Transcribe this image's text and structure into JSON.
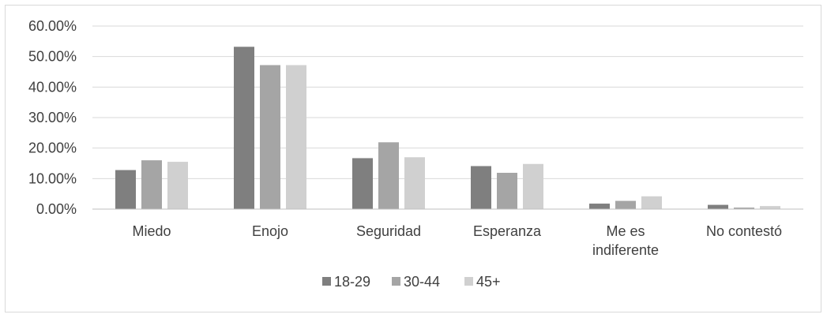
{
  "chart_data": {
    "type": "bar",
    "categories": [
      "Miedo",
      "Enojo",
      "Seguridad",
      "Esperanza",
      "Me es indiferente",
      "No contestó"
    ],
    "category_lines": [
      [
        "Miedo"
      ],
      [
        "Enojo"
      ],
      [
        "Seguridad"
      ],
      [
        "Esperanza"
      ],
      [
        "Me es",
        "indiferente"
      ],
      [
        "No contestó"
      ]
    ],
    "series": [
      {
        "name": "18-29",
        "color": "#7f7f7f",
        "values": [
          12.8,
          53.2,
          16.7,
          14.1,
          1.8,
          1.4
        ]
      },
      {
        "name": "30-44",
        "color": "#a5a5a5",
        "values": [
          16.0,
          47.2,
          21.9,
          11.9,
          2.7,
          0.5
        ]
      },
      {
        "name": "45+",
        "color": "#d0d0d0",
        "values": [
          15.5,
          47.2,
          17.0,
          14.8,
          4.2,
          1.0
        ]
      }
    ],
    "y_ticks": [
      "0.00%",
      "10.00%",
      "20.00%",
      "30.00%",
      "40.00%",
      "50.00%",
      "60.00%"
    ],
    "ylim": [
      0,
      60
    ],
    "grid": true,
    "legend_position": "bottom"
  }
}
